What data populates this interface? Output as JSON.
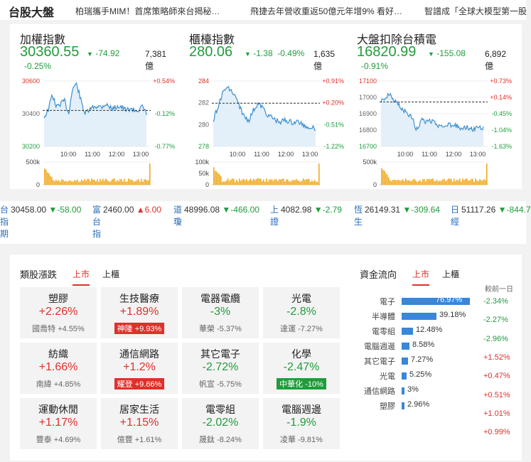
{
  "header": {
    "title": "台股大盤",
    "news": [
      "柏瑞攜手MIM！首席策略師來台揭秘…",
      "飛捷去年營收重返50億元年增9% 看好…",
      "智譜成「全球大模型第一股"
    ]
  },
  "indices": [
    {
      "name": "加權指數",
      "value": "30360.55",
      "change": "-74.92",
      "pct": "-0.25%",
      "volume_num": "7,381",
      "volume_unit": "億",
      "y_labels": [
        "30600",
        "30400",
        "30200"
      ],
      "pct_labels": [
        "+0.54%",
        "-0.12%",
        "-0.77%"
      ],
      "vol_label": "500k",
      "vol_zero": "0"
    },
    {
      "name": "櫃檯指數",
      "value": "280.06",
      "change": "-1.38",
      "pct": "-0.49%",
      "volume_num": "1,635",
      "volume_unit": "億",
      "y_labels": [
        "284",
        "282",
        "280",
        "278"
      ],
      "pct_labels": [
        "+0.91%",
        "+0.20%",
        "-0.51%",
        "-1.22%"
      ],
      "vol_label": "100k",
      "vol_mid": "50k",
      "vol_zero": "0"
    },
    {
      "name": "大盤扣除台積電",
      "value": "16820.99",
      "change": "-155.08",
      "pct": "-0.91%",
      "volume_num": "6,892",
      "volume_unit": "億",
      "y_labels": [
        "17100",
        "17000",
        "16900",
        "16800",
        "16700"
      ],
      "pct_labels": [
        "+0.73%",
        "+0.14%",
        "-0.45%",
        "-1.04%",
        "-1.63%"
      ],
      "vol_label": "500k",
      "vol_zero": "0"
    }
  ],
  "time_labels": [
    "10:00",
    "11:00",
    "12:00",
    "13:00"
  ],
  "ticker": [
    {
      "name": "台指期",
      "value": "30458.00",
      "change": "▼-58.00",
      "dir": "down"
    },
    {
      "name": "富台指",
      "value": "2460.00",
      "change": "▲6.00",
      "dir": "up"
    },
    {
      "name": "道瓊",
      "value": "48996.08",
      "change": "▼-466.00",
      "dir": "down"
    },
    {
      "name": "上證",
      "value": "4082.98",
      "change": "▼-2.79",
      "dir": "down"
    },
    {
      "name": "恆生",
      "value": "26149.31",
      "change": "▼-309.64",
      "dir": "down"
    },
    {
      "name": "日經",
      "value": "51117.26",
      "change": "▼-844.7",
      "dir": "down"
    }
  ],
  "sector": {
    "title": "類股漲跌",
    "tabs": [
      "上市",
      "上櫃"
    ],
    "cells": [
      {
        "name": "塑膠",
        "pct": "+2.26%",
        "dir": "up",
        "stock": "國喬特",
        "stock_pct": "+4.55%"
      },
      {
        "name": "生技醫療",
        "pct": "+1.89%",
        "dir": "up",
        "stock": "神隆",
        "stock_pct": "+9.93%",
        "badge": "up"
      },
      {
        "name": "電器電纜",
        "pct": "-3%",
        "dir": "down",
        "stock": "華榮",
        "stock_pct": "-5.37%"
      },
      {
        "name": "光電",
        "pct": "-2.8%",
        "dir": "down",
        "stock": "達運",
        "stock_pct": "-7.27%"
      },
      {
        "name": "紡織",
        "pct": "+1.66%",
        "dir": "up",
        "stock": "南緯",
        "stock_pct": "+4.85%"
      },
      {
        "name": "通信網路",
        "pct": "+1.2%",
        "dir": "up",
        "stock": "耀登",
        "stock_pct": "+9.66%",
        "badge": "up"
      },
      {
        "name": "其它電子",
        "pct": "-2.72%",
        "dir": "down",
        "stock": "帆宣",
        "stock_pct": "-5.75%"
      },
      {
        "name": "化學",
        "pct": "-2.47%",
        "dir": "down",
        "stock": "中華化",
        "stock_pct": "-10%",
        "badge": "down"
      },
      {
        "name": "運動休閒",
        "pct": "+1.17%",
        "dir": "up",
        "stock": "豐泰",
        "stock_pct": "+4.69%"
      },
      {
        "name": "居家生活",
        "pct": "+1.15%",
        "dir": "up",
        "stock": "億豐",
        "stock_pct": "+1.61%"
      },
      {
        "name": "電零組",
        "pct": "-2.02%",
        "dir": "down",
        "stock": "晟鈦",
        "stock_pct": "-8.24%"
      },
      {
        "name": "電腦週邊",
        "pct": "-1.9%",
        "dir": "down",
        "stock": "凌華",
        "stock_pct": "-9.81%"
      }
    ]
  },
  "flow": {
    "title": "資金流向",
    "tabs": [
      "上市",
      "上櫃"
    ],
    "prev_label": "較前一日",
    "rows": [
      {
        "name": "電子",
        "pct": "76.97%",
        "share": 0.7697
      },
      {
        "name": "半導體",
        "pct": "39.18%",
        "share": 0.3918
      },
      {
        "name": "電零組",
        "pct": "12.48%",
        "share": 0.1248
      },
      {
        "name": "電腦週邊",
        "pct": "8.58%",
        "share": 0.0858
      },
      {
        "name": "其它電子",
        "pct": "7.27%",
        "share": 0.0727
      },
      {
        "name": "光電",
        "pct": "5.25%",
        "share": 0.0525
      },
      {
        "name": "通信網路",
        "pct": "3%",
        "share": 0.03
      },
      {
        "name": "塑膠",
        "pct": "2.96%",
        "share": 0.0296
      }
    ],
    "changes": [
      {
        "value": "-2.34%",
        "dir": "down"
      },
      {
        "value": "-2.27%",
        "dir": "down"
      },
      {
        "value": "-2.96%",
        "dir": "down"
      },
      {
        "value": "+1.52%",
        "dir": "up"
      },
      {
        "value": "+0.47%",
        "dir": "up"
      },
      {
        "value": "+0.51%",
        "dir": "up"
      },
      {
        "value": "+1.01%",
        "dir": "up"
      },
      {
        "value": "+0.99%",
        "dir": "up"
      }
    ]
  },
  "colors": {
    "up": "#e0302a",
    "down": "#1f9d3c",
    "line": "#3d8fd1",
    "fill": "#dcecf9",
    "volume": "#f0a91f",
    "link": "#2a6ebb"
  }
}
